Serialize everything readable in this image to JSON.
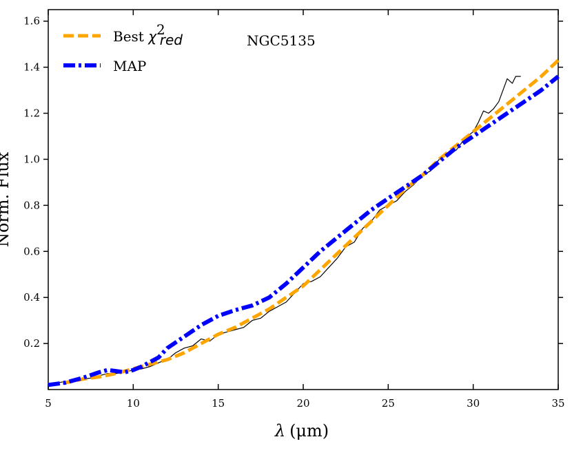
{
  "chart_data": {
    "type": "line",
    "annotation": "NGC5135",
    "xlabel": "λ (μm)",
    "xlabel_symbol": "λ",
    "xlabel_unit": "(μm)",
    "ylabel": "Norm. Flux",
    "xlim": [
      5,
      35
    ],
    "ylim": [
      0.0,
      1.65
    ],
    "xticks": [
      5,
      10,
      15,
      20,
      25,
      30,
      35
    ],
    "yticks": [
      0.2,
      0.4,
      0.6,
      0.8,
      1.0,
      1.2,
      1.4,
      1.6
    ],
    "xtick_labels": [
      "5",
      "10",
      "15",
      "20",
      "25",
      "30",
      "35"
    ],
    "ytick_labels": [
      "0.2",
      "0.4",
      "0.6",
      "0.8",
      "1.0",
      "1.2",
      "1.4",
      "1.6"
    ],
    "legend": {
      "location": "top-left",
      "entries": [
        {
          "label": "Best χ²red",
          "base": "Best ",
          "math": "χ",
          "sup": "2",
          "sub": "red"
        },
        {
          "label": "MAP"
        }
      ]
    },
    "series": [
      {
        "name": "Spectrum",
        "color": "#000000",
        "style": "solid-thin",
        "x": [
          5.2,
          5.6,
          6.0,
          6.5,
          7.0,
          7.5,
          8.0,
          8.5,
          9.0,
          9.5,
          10.0,
          10.5,
          11.0,
          11.3,
          11.6,
          12.0,
          12.5,
          13.0,
          13.5,
          14.0,
          14.5,
          15.0,
          15.5,
          16.0,
          16.5,
          17.0,
          17.5,
          18.0,
          18.5,
          19.0,
          19.5,
          20.0,
          20.5,
          21.0,
          21.5,
          22.0,
          22.5,
          23.0,
          23.5,
          24.0,
          24.5,
          25.0,
          25.5,
          26.0,
          26.5,
          27.0,
          27.5,
          28.0,
          28.5,
          29.0,
          29.5,
          30.0,
          30.3,
          30.6,
          30.9,
          31.2,
          31.5,
          31.8,
          32.0,
          32.3,
          32.5,
          32.8
        ],
        "y": [
          0.02,
          0.03,
          0.035,
          0.04,
          0.045,
          0.05,
          0.06,
          0.07,
          0.07,
          0.075,
          0.085,
          0.09,
          0.1,
          0.11,
          0.12,
          0.13,
          0.16,
          0.18,
          0.19,
          0.22,
          0.21,
          0.24,
          0.25,
          0.26,
          0.27,
          0.3,
          0.31,
          0.34,
          0.36,
          0.38,
          0.42,
          0.46,
          0.47,
          0.49,
          0.53,
          0.57,
          0.62,
          0.64,
          0.7,
          0.73,
          0.78,
          0.8,
          0.82,
          0.86,
          0.89,
          0.93,
          0.95,
          1.0,
          1.02,
          1.04,
          1.09,
          1.12,
          1.16,
          1.21,
          1.2,
          1.22,
          1.25,
          1.31,
          1.35,
          1.33,
          1.36,
          1.36
        ]
      },
      {
        "name": "Best χ²red",
        "color": "#ffa500",
        "style": "dashed",
        "x": [
          5,
          6,
          7,
          8,
          9,
          10,
          11,
          12,
          13,
          14,
          15,
          16,
          17,
          18,
          19,
          20,
          21,
          22,
          23,
          24,
          25,
          26,
          27,
          28,
          29,
          30,
          31,
          32,
          33,
          34,
          35
        ],
        "y": [
          0.02,
          0.03,
          0.045,
          0.055,
          0.07,
          0.09,
          0.11,
          0.13,
          0.16,
          0.2,
          0.24,
          0.27,
          0.31,
          0.35,
          0.4,
          0.45,
          0.52,
          0.59,
          0.66,
          0.73,
          0.8,
          0.87,
          0.93,
          1.0,
          1.06,
          1.12,
          1.18,
          1.24,
          1.3,
          1.36,
          1.43
        ]
      },
      {
        "name": "MAP",
        "color": "#0000ff",
        "style": "dash-dot",
        "x": [
          5,
          6,
          7,
          8,
          8.5,
          9,
          9.5,
          10,
          10.5,
          11,
          11.5,
          12,
          13,
          14,
          15,
          16,
          17,
          18,
          19,
          20,
          21,
          22,
          23,
          24,
          25,
          26,
          27,
          28,
          29,
          30,
          31,
          32,
          33,
          34,
          35
        ],
        "y": [
          0.02,
          0.03,
          0.05,
          0.075,
          0.085,
          0.08,
          0.075,
          0.085,
          0.1,
          0.12,
          0.14,
          0.18,
          0.23,
          0.28,
          0.32,
          0.345,
          0.365,
          0.4,
          0.46,
          0.53,
          0.6,
          0.66,
          0.72,
          0.78,
          0.83,
          0.88,
          0.93,
          0.99,
          1.05,
          1.1,
          1.15,
          1.2,
          1.25,
          1.3,
          1.36
        ]
      }
    ]
  }
}
